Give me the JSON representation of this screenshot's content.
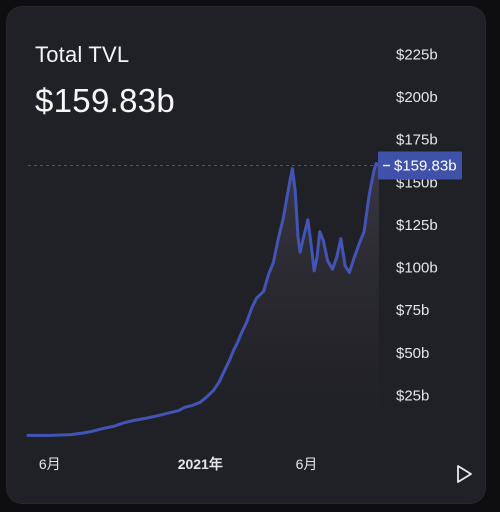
{
  "card": {
    "title": "Total TVL",
    "value": "$159.83b"
  },
  "colors": {
    "background": "#202126",
    "line": "#4354b6",
    "marker_bg": "#3f51a8",
    "text": "#f3f4f6",
    "axis_text": "#e4e6ec"
  },
  "chart_data": {
    "type": "area",
    "title": "Total TVL",
    "y_unit": "billions USD",
    "current_value": 159.83,
    "current_label": "$159.83b",
    "ylim": [
      0,
      237
    ],
    "yticks": [
      {
        "value": 25,
        "label": "$25b"
      },
      {
        "value": 50,
        "label": "$50b"
      },
      {
        "value": 75,
        "label": "$75b"
      },
      {
        "value": 100,
        "label": "$100b"
      },
      {
        "value": 125,
        "label": "$125b"
      },
      {
        "value": 150,
        "label": "$150b"
      },
      {
        "value": 175,
        "label": "$175b"
      },
      {
        "value": 200,
        "label": "$200b"
      },
      {
        "value": 225,
        "label": "$225b"
      }
    ],
    "xlim": [
      "2020-05-01",
      "2021-09-15"
    ],
    "xticks": [
      {
        "value": "2020-06-01",
        "label": "6月",
        "bold": false
      },
      {
        "value": "2021-01-01",
        "label": "2021年",
        "bold": true
      },
      {
        "value": "2021-06-01",
        "label": "6月",
        "bold": false
      }
    ],
    "grid": false,
    "legend": "none",
    "series": [
      {
        "x": [
          "2020-05-01",
          "2020-06-01",
          "2020-07-01",
          "2020-07-20",
          "2020-08-01",
          "2020-08-15",
          "2020-09-01",
          "2020-09-15",
          "2020-10-01",
          "2020-10-15",
          "2020-11-01",
          "2020-11-15",
          "2020-12-01",
          "2020-12-10",
          "2020-12-20",
          "2021-01-01",
          "2021-01-10",
          "2021-01-20",
          "2021-01-28",
          "2021-02-05",
          "2021-02-12",
          "2021-02-18",
          "2021-02-23",
          "2021-03-01",
          "2021-03-08",
          "2021-03-15",
          "2021-03-22",
          "2021-04-01",
          "2021-04-08",
          "2021-04-15",
          "2021-04-22",
          "2021-04-29",
          "2021-05-05",
          "2021-05-09",
          "2021-05-12",
          "2021-05-16",
          "2021-05-20",
          "2021-05-23",
          "2021-05-28",
          "2021-06-03",
          "2021-06-08",
          "2021-06-12",
          "2021-06-16",
          "2021-06-20",
          "2021-06-25",
          "2021-07-01",
          "2021-07-08",
          "2021-07-14",
          "2021-07-20",
          "2021-07-26",
          "2021-08-01",
          "2021-08-08",
          "2021-08-15",
          "2021-08-22",
          "2021-08-29",
          "2021-09-05",
          "2021-09-08",
          "2021-09-12"
        ],
        "values": [
          1.5,
          1.5,
          2.0,
          3.0,
          4.0,
          5.5,
          7.0,
          9.0,
          10.5,
          11.5,
          13.0,
          14.5,
          16.0,
          18.0,
          19.0,
          21.0,
          24.0,
          28.0,
          33.0,
          40.0,
          46.0,
          52.0,
          56.0,
          62.0,
          68.0,
          76.0,
          82.0,
          86.0,
          96.0,
          103.0,
          117.0,
          129.0,
          143.0,
          152.0,
          158.0,
          145.0,
          118.0,
          109.0,
          118.0,
          128.0,
          112.0,
          98.0,
          106.0,
          121.0,
          116.0,
          104.0,
          99.0,
          106.0,
          117.0,
          101.0,
          97.0,
          106.0,
          114.0,
          121.0,
          142.0,
          157.0,
          161.0,
          159.83
        ]
      }
    ]
  }
}
